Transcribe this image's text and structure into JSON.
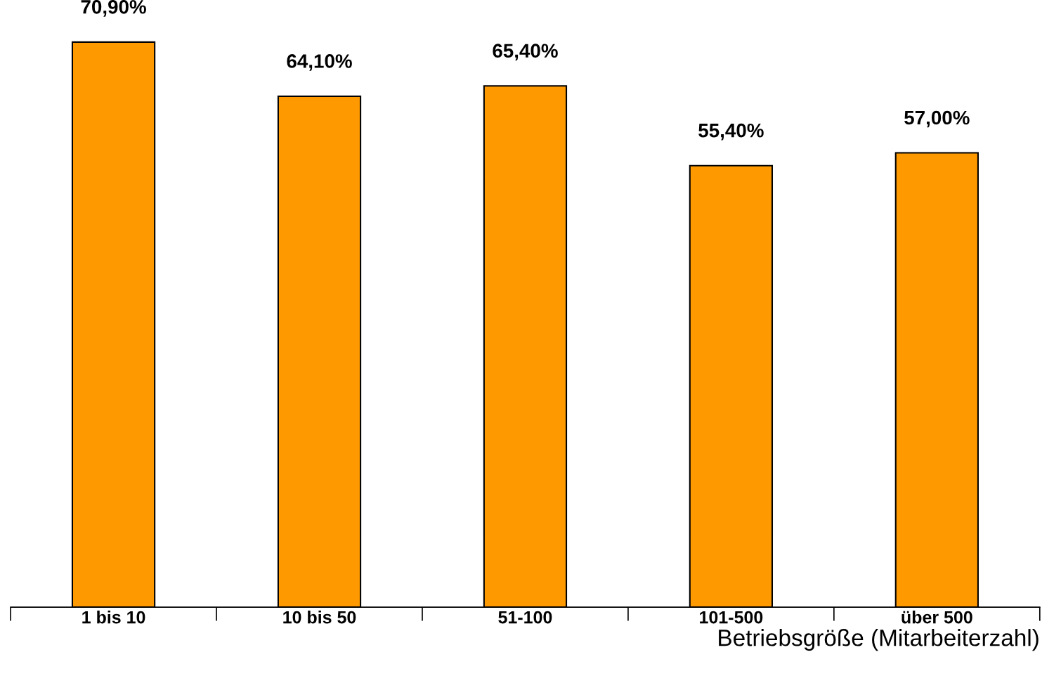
{
  "chart_data": {
    "type": "bar",
    "xlabel": "Betriebsgröße (Mitarbeiterzahl)",
    "categories": [
      "1 bis 10",
      "10 bis 50",
      "51-100",
      "101-500",
      "über 500"
    ],
    "values": [
      70.9,
      64.1,
      65.4,
      55.4,
      57.0
    ],
    "value_labels": [
      "70,90%",
      "64,10%",
      "65,40%",
      "55,40%",
      "57,00%"
    ],
    "color": "#ff9900",
    "tick_labels": "x",
    "grid": false
  }
}
